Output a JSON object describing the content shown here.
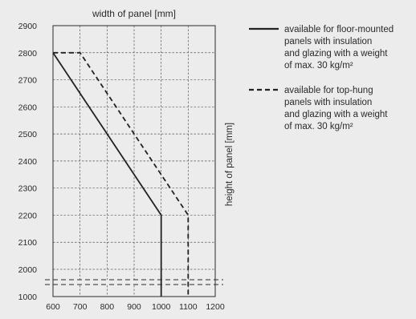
{
  "chart_data": {
    "type": "line",
    "title": "",
    "xlabel": "width of panel [mm]",
    "ylabel": "height of panel [mm]",
    "x_ticks": [
      600,
      700,
      800,
      900,
      1000,
      1100,
      1200
    ],
    "y_ticks": [
      1000,
      2000,
      2100,
      2200,
      2300,
      2400,
      2500,
      2600,
      2700,
      2800,
      2900
    ],
    "xlim": [
      600,
      1200
    ],
    "ylim": [
      1000,
      2900
    ],
    "y_axis_break": "between 1000 and 2000",
    "grid": true,
    "legend_position": "right",
    "series": [
      {
        "name": "available for floor-mounted panels with insulation and glazing with a weight of max. 30 kg/m²",
        "style": "solid",
        "x": [
          600,
          1000,
          1000
        ],
        "y": [
          2800,
          2200,
          1000
        ]
      },
      {
        "name": "available for top-hung panels with insulation and glazing with a weight of max. 30 kg/m²",
        "style": "dashed",
        "x": [
          600,
          700,
          1100,
          1100
        ],
        "y": [
          2800,
          2800,
          2200,
          1000
        ]
      }
    ],
    "legend": [
      {
        "lines": [
          "available for floor-mounted",
          "panels with insulation",
          "and glazing with a weight",
          "of max. 30 kg/m²"
        ]
      },
      {
        "lines": [
          "available for top-hung",
          "panels with insulation",
          "and glazing with a weight",
          "of max. 30 kg/m²"
        ]
      }
    ],
    "colors": {
      "background": "#ececec",
      "line": "#222222",
      "grid": "#555555"
    }
  }
}
